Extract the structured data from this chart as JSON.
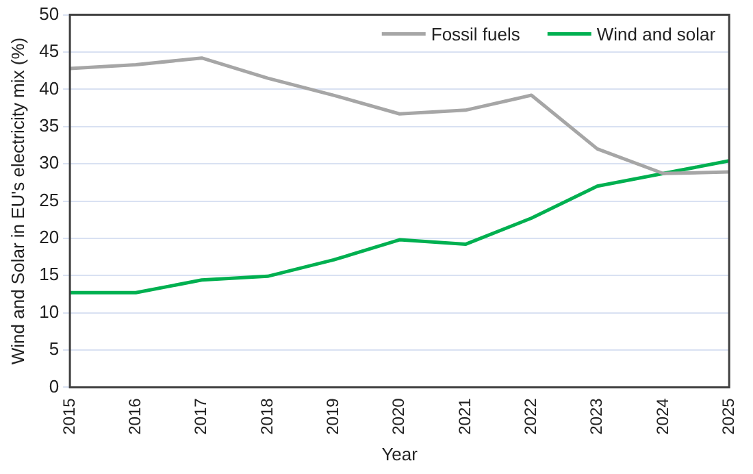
{
  "chart_data": {
    "type": "line",
    "xlabel": "Year",
    "ylabel": "Wind and Solar in EU's electricity mix (%)",
    "categories": [
      "2015",
      "2016",
      "2017",
      "2018",
      "2019",
      "2020",
      "2021",
      "2022",
      "2023",
      "2024",
      "2025"
    ],
    "series": [
      {
        "name": "Fossil fuels",
        "color": "#a6a6a6",
        "values": [
          42.8,
          43.3,
          44.2,
          41.5,
          39.2,
          36.7,
          37.2,
          39.2,
          32,
          28.7,
          28.9
        ]
      },
      {
        "name": "Wind and solar",
        "color": "#00b050",
        "values": [
          12.7,
          12.7,
          14.4,
          14.9,
          17.1,
          19.8,
          19.2,
          22.7,
          27,
          28.7,
          30.4
        ]
      }
    ],
    "ylim": [
      0,
      50
    ],
    "yticks": [
      0,
      5,
      10,
      15,
      20,
      25,
      30,
      35,
      40,
      45,
      50
    ],
    "grid": "y",
    "legend": "top right",
    "marker": "none",
    "line_style": "solid"
  }
}
